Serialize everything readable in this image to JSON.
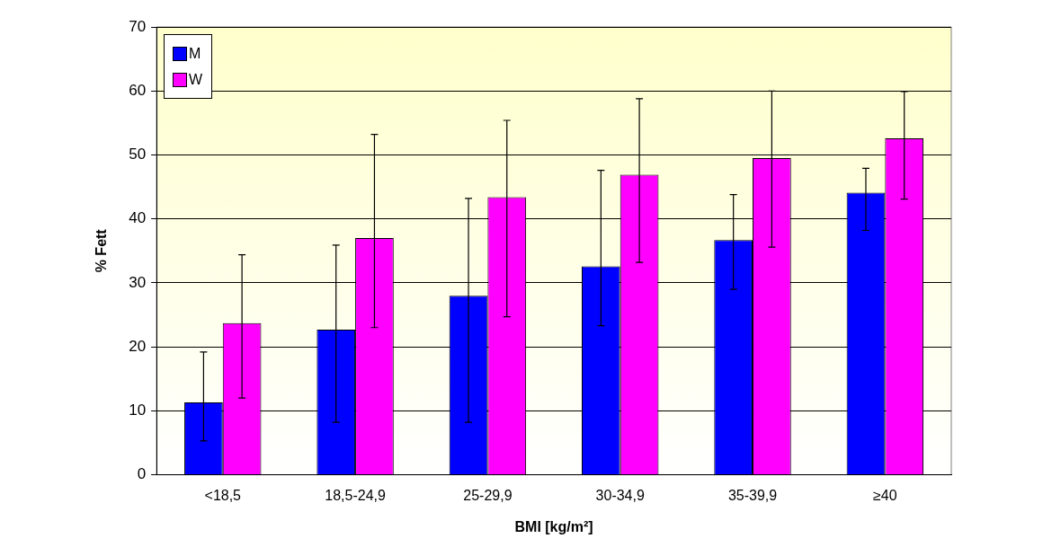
{
  "chart_data": {
    "type": "bar",
    "xlabel": "BMI [kg/m²]",
    "ylabel": "% Fett",
    "categories": [
      "<18,5",
      "18,5-24,9",
      "25-29,9",
      "30-34,9",
      "35-39,9",
      "≥40"
    ],
    "series": [
      {
        "name": "M",
        "color": "#0000ff",
        "values": [
          11.3,
          22.7,
          28,
          32.6,
          36.7,
          44.1
        ],
        "errors": [
          [
            5.3,
            19.2
          ],
          [
            8.2,
            35.9
          ],
          [
            8.2,
            43.2
          ],
          [
            23.3,
            47.6
          ],
          [
            29,
            43.8
          ],
          [
            38.2,
            47.9
          ]
        ]
      },
      {
        "name": "W",
        "color": "#ff00ff",
        "values": [
          23.7,
          37,
          43.4,
          46.9,
          49.5,
          52.6
        ],
        "errors": [
          [
            12,
            34.4
          ],
          [
            23,
            53.2
          ],
          [
            24.7,
            55.4
          ],
          [
            33.2,
            58.8
          ],
          [
            35.6,
            60
          ],
          [
            43.1,
            59.9
          ]
        ]
      }
    ],
    "ylim": [
      0,
      70
    ],
    "yticks": [
      0,
      10,
      20,
      30,
      40,
      50,
      60,
      70
    ],
    "grid": "y",
    "legend": "top left"
  }
}
